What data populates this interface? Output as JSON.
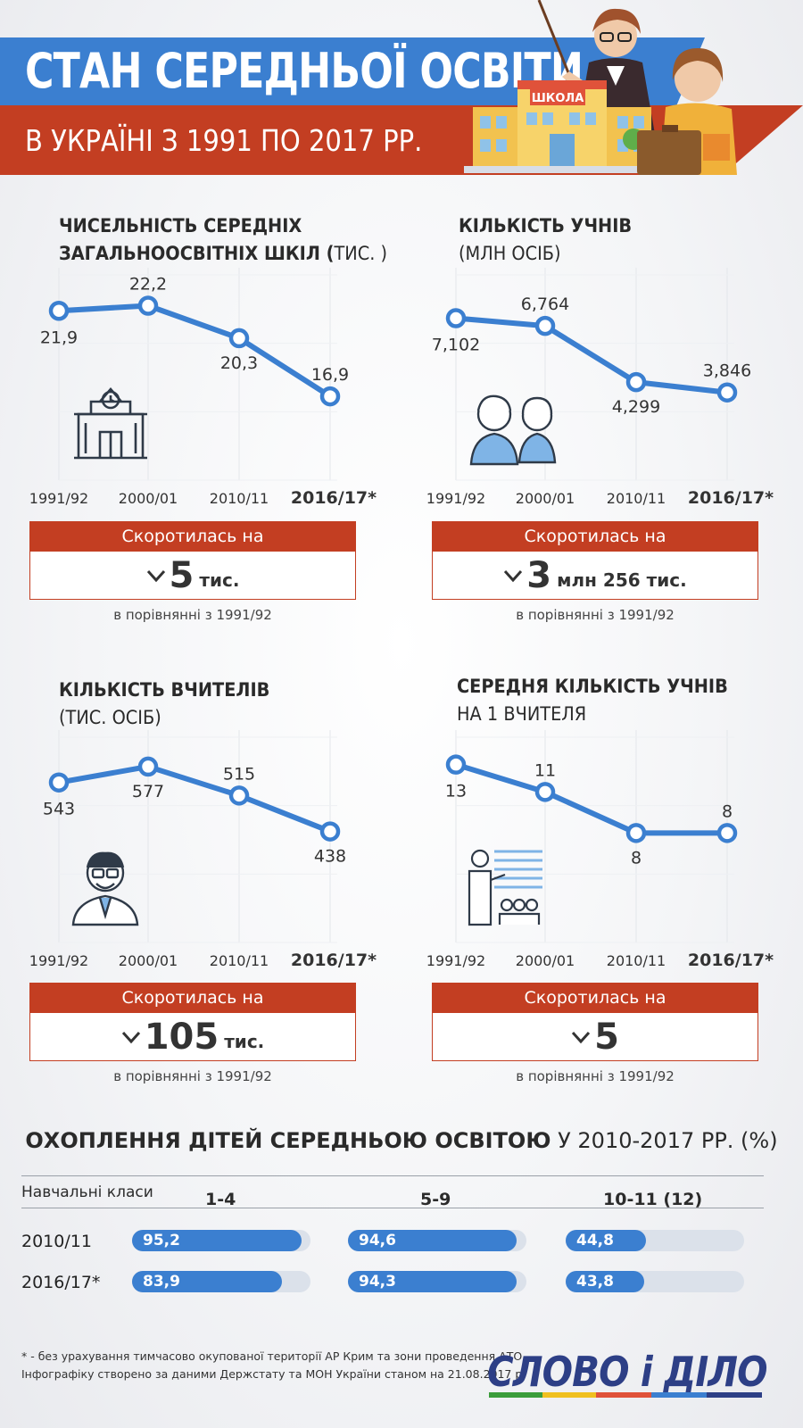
{
  "header": {
    "title": "СТАН СЕРЕДНЬОЇ ОСВІТИ",
    "subtitle": "В УКРАЇНІ З 1991 ПО 2017 РР.",
    "school_sign": "ШКОЛА"
  },
  "colors": {
    "blue": "#3b7fd0",
    "red": "#c33e22",
    "track": "#dbe1ea",
    "logo": "#2d3f86"
  },
  "panels": [
    {
      "title_bold": "ЧИСЕЛЬНІСТЬ СЕРЕДНІХ",
      "title_bold2": "ЗАГАЛЬНООСВІТНІХ ШКІЛ (",
      "title_normal": "ТИС. )",
      "icon": "school-building-icon",
      "summary": {
        "head": "Скоротилась на",
        "value": "5",
        "unit": "тис.",
        "note": "в порівнянні з 1991/92"
      }
    },
    {
      "title_bold": "КІЛЬКІСТЬ УЧНІВ",
      "title_normal": "(МЛН ОСІБ)",
      "icon": "students-icon",
      "summary": {
        "head": "Скоротилась на",
        "value": "3",
        "unit": "млн 256 тис.",
        "note": "в порівнянні з 1991/92"
      }
    },
    {
      "title_bold": "КІЛЬКІСТЬ ВЧИТЕЛІВ",
      "title_normal": "(ТИС. ОСІБ)",
      "icon": "teacher-icon",
      "summary": {
        "head": "Скоротилась на",
        "value": "105",
        "unit": "тис.",
        "note": "в порівнянні з 1991/92"
      }
    },
    {
      "title_bold": "СЕРЕДНЯ КІЛЬКІСТЬ УЧНІВ",
      "title_normal": "НА 1 ВЧИТЕЛЯ",
      "icon": "classroom-icon",
      "summary": {
        "head": "Скоротилась на",
        "value": "5",
        "unit": "",
        "note": "в порівнянні з 1991/92"
      }
    }
  ],
  "chart_data": [
    {
      "type": "line",
      "categories": [
        "1991/92",
        "2000/01",
        "2010/11",
        "2016/17*"
      ],
      "values": [
        21.9,
        22.2,
        20.3,
        16.9
      ],
      "labels": [
        "21,9",
        "22,2",
        "20,3",
        "16,9"
      ],
      "ylim": [
        12,
        24
      ]
    },
    {
      "type": "line",
      "categories": [
        "1991/92",
        "2000/01",
        "2010/11",
        "2016/17*"
      ],
      "values": [
        7.102,
        6.764,
        4.299,
        3.846
      ],
      "labels": [
        "7,102",
        "6,764",
        "4,299",
        "3,846"
      ],
      "ylim": [
        0,
        9
      ]
    },
    {
      "type": "line",
      "categories": [
        "1991/92",
        "2000/01",
        "2010/11",
        "2016/17*"
      ],
      "values": [
        543,
        577,
        515,
        438
      ],
      "labels": [
        "543",
        "577",
        "515",
        "438"
      ],
      "ylim": [
        200,
        640
      ]
    },
    {
      "type": "line",
      "categories": [
        "1991/92",
        "2000/01",
        "2010/11",
        "2016/17*"
      ],
      "values": [
        13,
        11,
        8,
        8
      ],
      "labels": [
        "13",
        "11",
        "8",
        "8"
      ],
      "ylim": [
        0,
        15
      ]
    },
    {
      "type": "bar",
      "title_bold": "ОХОПЛЕННЯ ДІТЕЙ СЕРЕДНЬОЮ ОСВІТОЮ",
      "title_normal": "У 2010-2017 РР. (%)",
      "header_label": "Навчальні класи",
      "categories": [
        "1-4",
        "5-9",
        "10-11 (12)"
      ],
      "series": [
        {
          "name": "2010/11",
          "values": [
            95.2,
            94.6,
            44.8
          ],
          "labels": [
            "95,2",
            "94,6",
            "44,8"
          ]
        },
        {
          "name": "2016/17*",
          "values": [
            83.9,
            94.3,
            43.8
          ],
          "labels": [
            "83,9",
            "94,3",
            "43,8"
          ]
        }
      ],
      "ylim": [
        0,
        100
      ]
    }
  ],
  "footer": {
    "note1": "* - без урахування тимчасово окупованої території АР Крим та зони проведення АТО",
    "note2": "Інфографіку створено за даними Держстату та МОН України станом на 21.08.2017 р.",
    "logo": "СЛОВО і ДІЛО"
  }
}
